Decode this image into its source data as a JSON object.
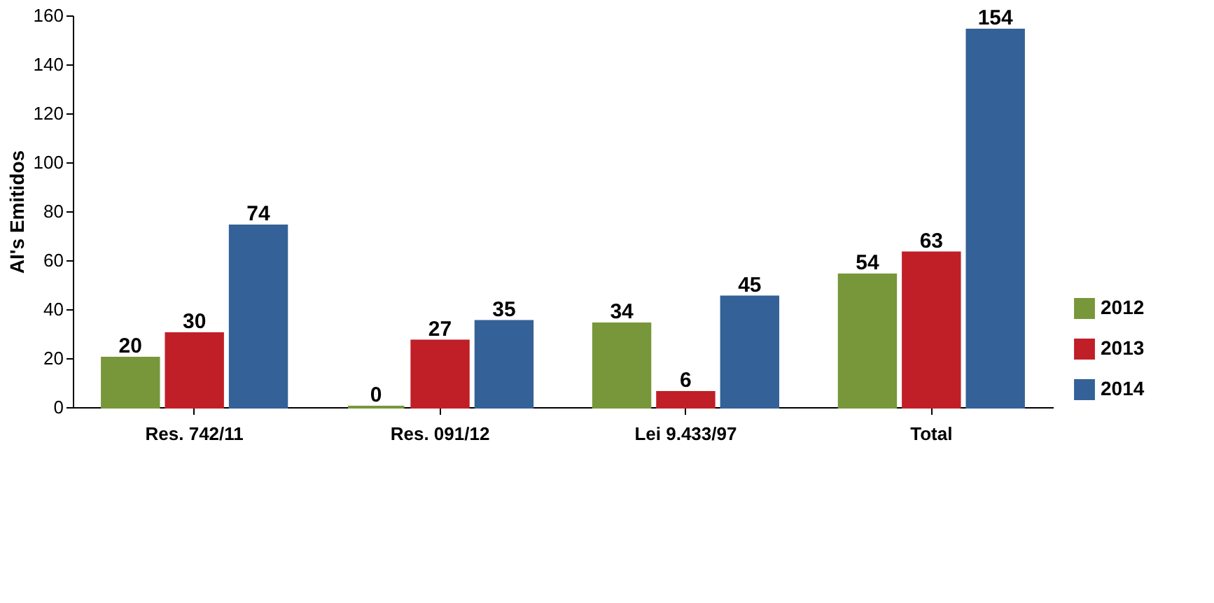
{
  "chart_data": {
    "type": "bar",
    "ylabel": "AI's Emitidos",
    "categories": [
      "Res. 742/11",
      "Res. 091/12",
      "Lei 9.433/97",
      "Total"
    ],
    "series": [
      {
        "name": "2012",
        "color": "#77973a",
        "values": [
          20,
          0,
          34,
          54
        ]
      },
      {
        "name": "2013",
        "color": "#c01f28",
        "values": [
          30,
          27,
          6,
          63
        ]
      },
      {
        "name": "2014",
        "color": "#346197",
        "values": [
          74,
          35,
          45,
          154
        ]
      }
    ],
    "ylim": [
      0,
      160
    ],
    "yticks": [
      0,
      20,
      40,
      60,
      80,
      100,
      120,
      140,
      160
    ],
    "data_labels": true,
    "grid": false,
    "legend": "bottom right"
  }
}
